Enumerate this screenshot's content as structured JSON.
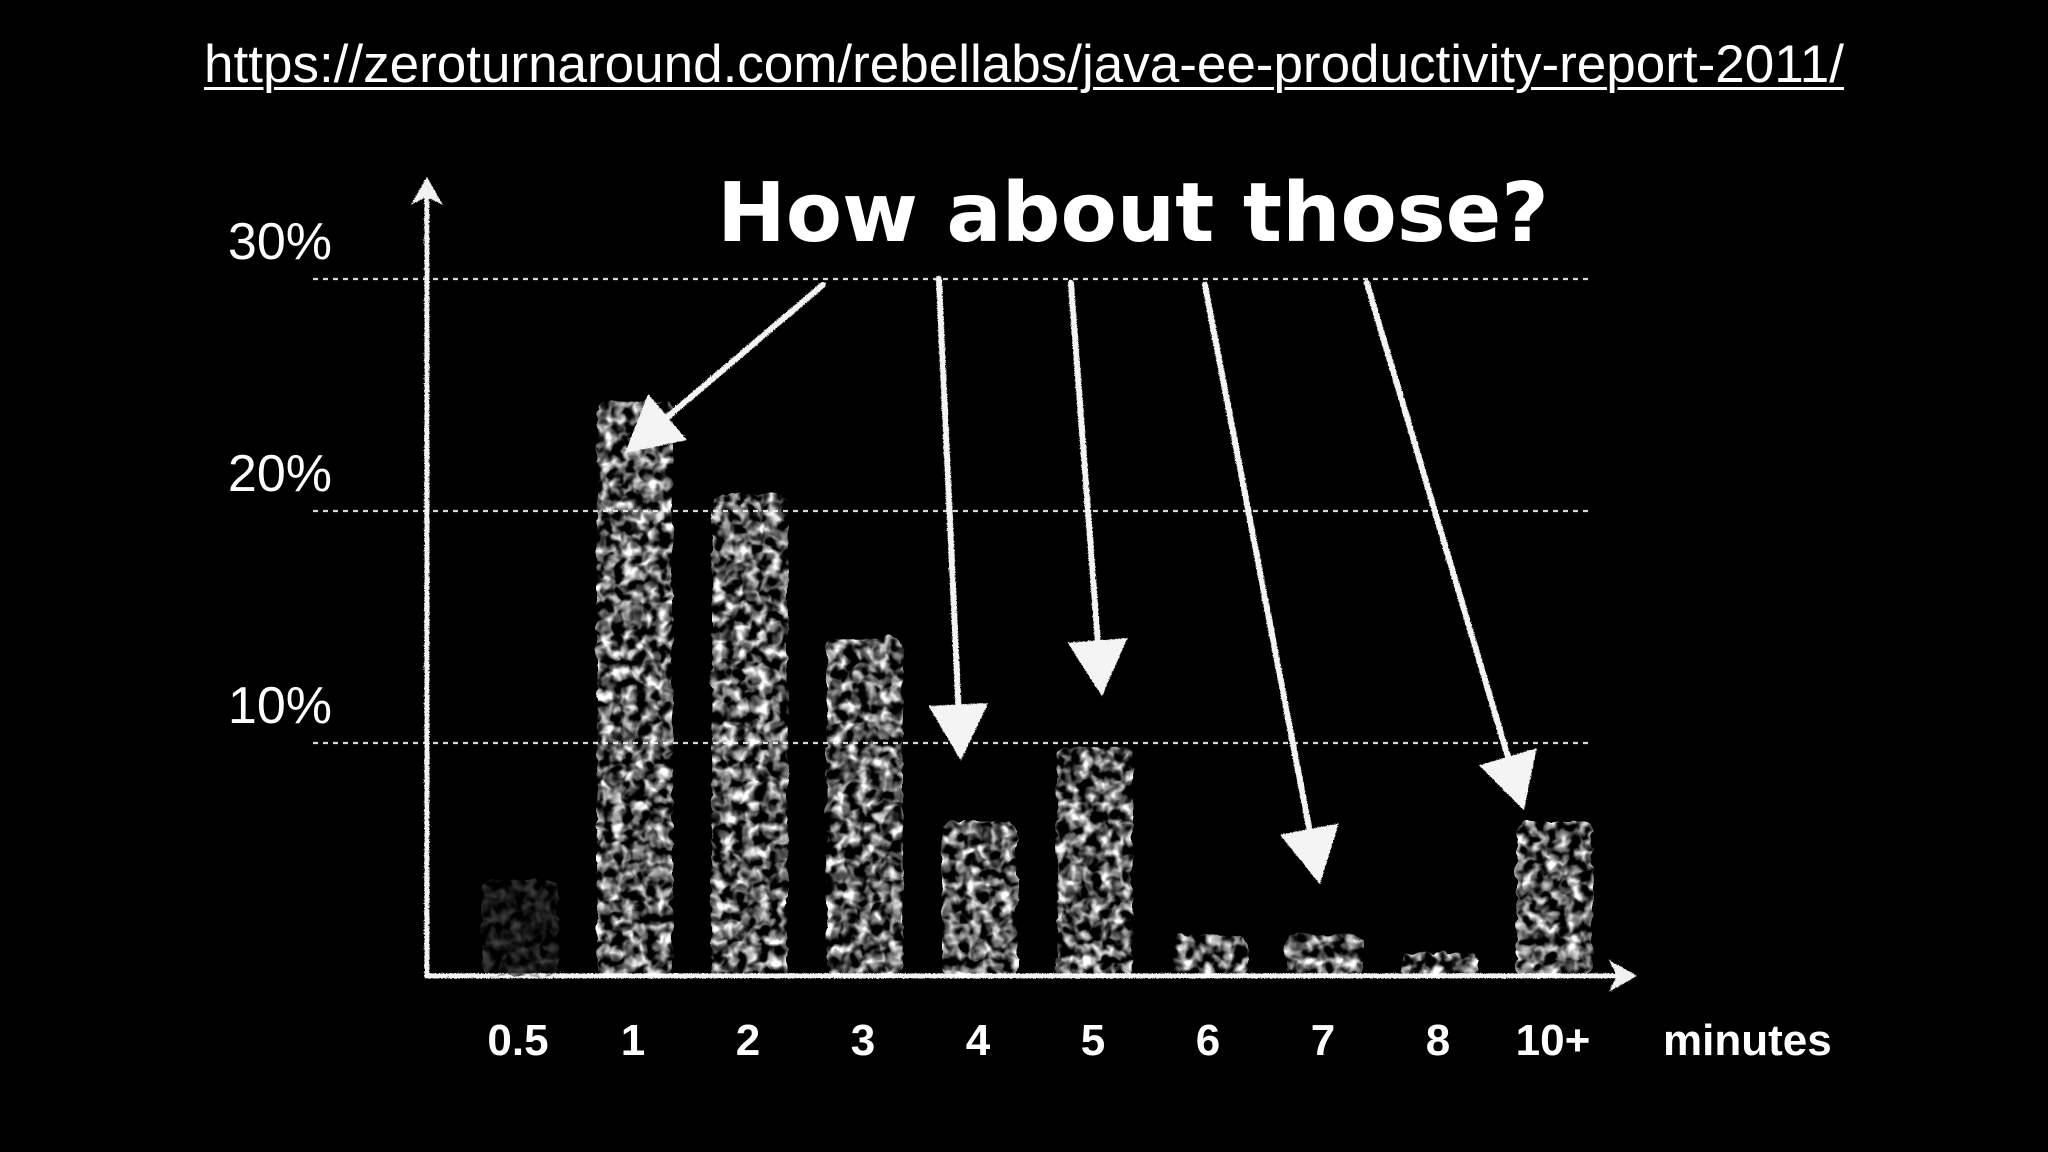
{
  "slide": {
    "url_link": "https://zeroturnaround.com/rebellabs/java-ee-productivity-report-2011/",
    "headline": "How about those?"
  },
  "chart_data": {
    "type": "bar",
    "title": "",
    "xlabel": "minutes",
    "ylabel": "",
    "categories": [
      "0.5",
      "1",
      "2",
      "3",
      "4",
      "5",
      "6",
      "7",
      "8",
      "10+"
    ],
    "values": [
      4.2,
      24.8,
      20.8,
      14.6,
      6.7,
      9.9,
      1.8,
      1.8,
      1.0,
      6.7
    ],
    "ylim": [
      0,
      34
    ],
    "y_ticks": [
      10,
      20,
      30
    ],
    "y_tick_labels": [
      "10%",
      "20%",
      "30%"
    ],
    "grid": "dotted horizontal lines at 10%, 20%, 30%",
    "legend": "none",
    "highlighted_categories": [
      "2",
      "4",
      "5",
      "7",
      "10+"
    ],
    "colors": {
      "background": "#000000",
      "bar": "#ffffff",
      "dim_bar": "#3c3c3c",
      "text": "#ffffff"
    }
  }
}
